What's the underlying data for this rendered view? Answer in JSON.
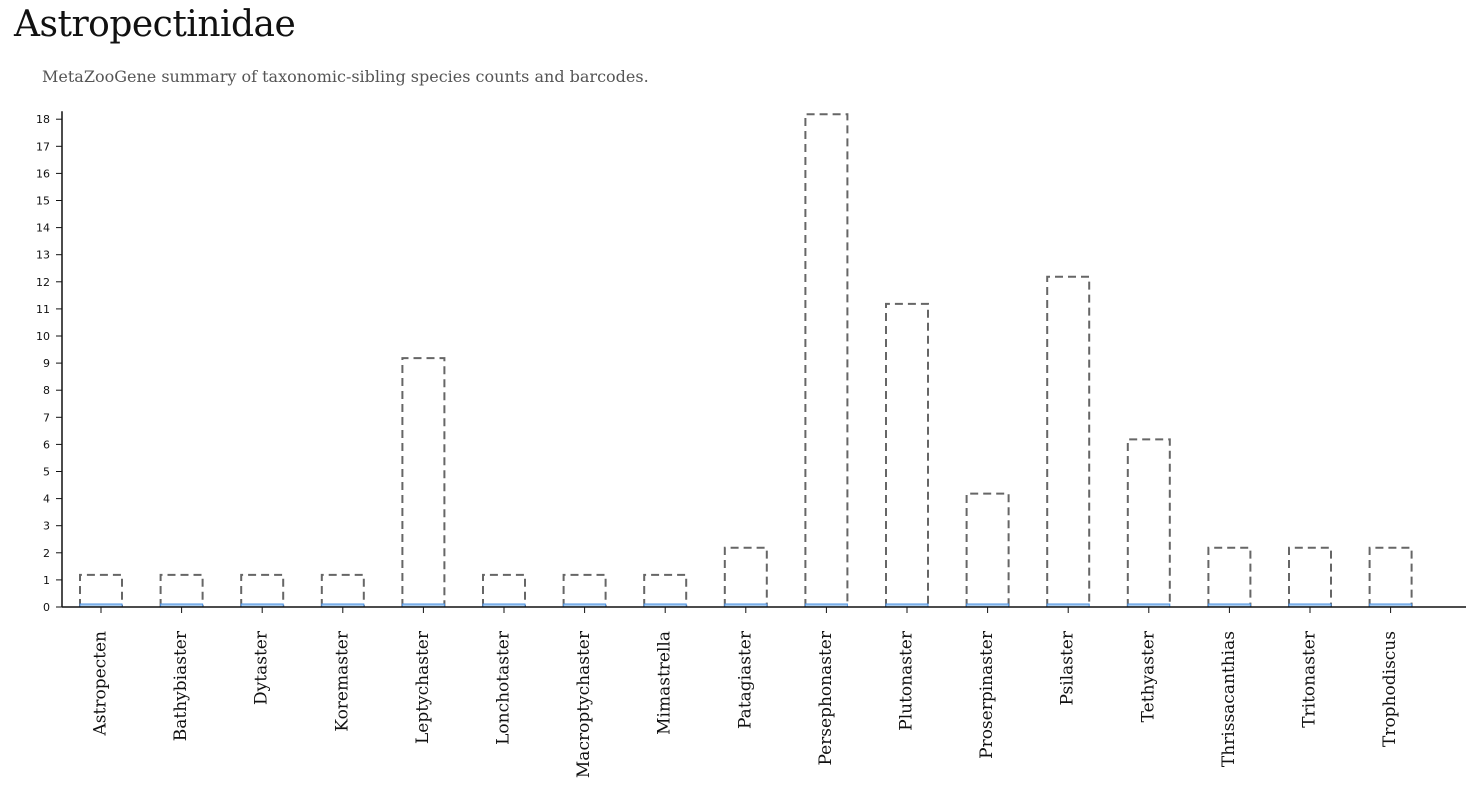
{
  "page": {
    "title": "Astropectinidae",
    "subtitle": "MetaZooGene summary of taxonomic-sibling species counts and barcodes."
  },
  "colors": {
    "species_outline": "#666666",
    "barcode_fill": "#a9cdf0",
    "barcode_stroke": "#4a90e2",
    "axis": "#111111"
  },
  "chart_data": {
    "type": "bar",
    "title": "",
    "xlabel": "",
    "ylabel": "",
    "ylim": [
      0,
      18
    ],
    "y_ticks": [
      0,
      1,
      2,
      3,
      4,
      5,
      6,
      7,
      8,
      9,
      10,
      11,
      12,
      13,
      14,
      15,
      16,
      17,
      18
    ],
    "grid": false,
    "legend": "none",
    "categories": [
      "Astropecten",
      "Bathybiaster",
      "Dytaster",
      "Koremaster",
      "Leptychaster",
      "Lonchotaster",
      "Macroptychaster",
      "Mimastrella",
      "Patagiaster",
      "Persephonaster",
      "Plutonaster",
      "Proserpinaster",
      "Psilaster",
      "Tethyaster",
      "Thrissacanthias",
      "Tritonaster",
      "Trophodiscus"
    ],
    "series": [
      {
        "style": "dashed-outline",
        "values": [
          1,
          1,
          1,
          1,
          9,
          1,
          1,
          1,
          2,
          18,
          11,
          4,
          12,
          6,
          2,
          2,
          2
        ]
      },
      {
        "style": "blue-filled",
        "values": [
          0,
          0,
          0,
          0,
          0,
          0,
          0,
          0,
          0,
          0,
          0,
          0,
          0,
          0,
          0,
          0,
          0
        ]
      }
    ]
  }
}
